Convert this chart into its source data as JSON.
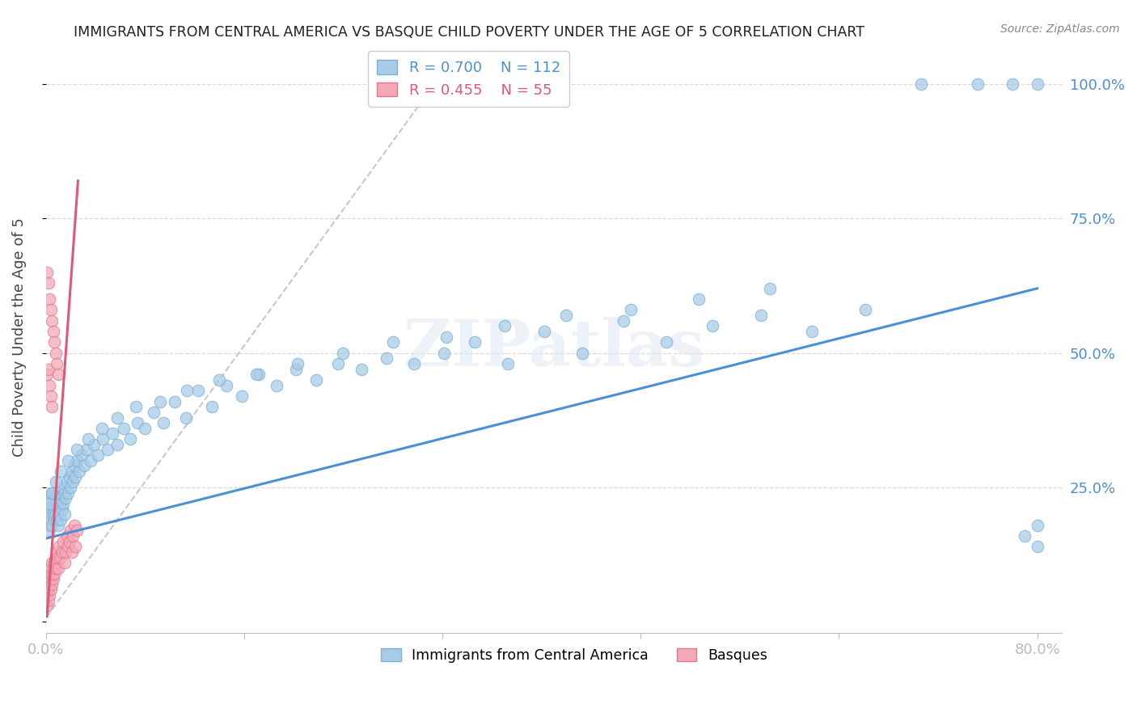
{
  "title": "IMMIGRANTS FROM CENTRAL AMERICA VS BASQUE CHILD POVERTY UNDER THE AGE OF 5 CORRELATION CHART",
  "source": "Source: ZipAtlas.com",
  "ylabel": "Child Poverty Under the Age of 5",
  "watermark": "ZIPatlas",
  "legend_blue_r": "R = 0.700",
  "legend_blue_n": "N = 112",
  "legend_pink_r": "R = 0.455",
  "legend_pink_n": "N = 55",
  "legend_blue_label": "Immigrants from Central America",
  "legend_pink_label": "Basques",
  "blue_color": "#a8cce8",
  "blue_edge_color": "#7ab0d4",
  "pink_color": "#f4a8b8",
  "pink_edge_color": "#e07890",
  "blue_line_color": "#4a90d9",
  "pink_line_color": "#e05878",
  "dash_line_color": "#c8c8c8",
  "grid_color": "#d8d8d8",
  "title_color": "#222222",
  "tick_color": "#4a90d9",
  "ylabel_color": "#444444",
  "xlim": [
    0.0,
    0.82
  ],
  "ylim": [
    -0.02,
    1.08
  ],
  "xticks": [
    0.0,
    0.16,
    0.32,
    0.48,
    0.64,
    0.8
  ],
  "xticklabels": [
    "0.0%",
    "",
    "",
    "",
    "",
    "80.0%"
  ],
  "yticks_right": [
    0.25,
    0.5,
    0.75,
    1.0
  ],
  "yticklabels_right": [
    "25.0%",
    "50.0%",
    "75.0%",
    "100.0%"
  ],
  "blue_trend": [
    0.0,
    0.8,
    0.155,
    0.62
  ],
  "pink_trend": [
    0.001,
    0.026,
    0.01,
    0.82
  ],
  "dash_trend": [
    0.001,
    0.32,
    0.01,
    1.02
  ],
  "blue_x": [
    0.001,
    0.002,
    0.002,
    0.003,
    0.003,
    0.004,
    0.004,
    0.005,
    0.005,
    0.006,
    0.006,
    0.007,
    0.007,
    0.007,
    0.008,
    0.008,
    0.009,
    0.009,
    0.01,
    0.01,
    0.01,
    0.011,
    0.011,
    0.012,
    0.012,
    0.013,
    0.013,
    0.014,
    0.015,
    0.015,
    0.016,
    0.017,
    0.018,
    0.019,
    0.02,
    0.021,
    0.022,
    0.023,
    0.024,
    0.025,
    0.027,
    0.029,
    0.031,
    0.033,
    0.036,
    0.039,
    0.042,
    0.046,
    0.05,
    0.054,
    0.058,
    0.063,
    0.068,
    0.074,
    0.08,
    0.087,
    0.095,
    0.104,
    0.113,
    0.123,
    0.134,
    0.146,
    0.158,
    0.172,
    0.186,
    0.202,
    0.218,
    0.236,
    0.255,
    0.275,
    0.297,
    0.321,
    0.346,
    0.373,
    0.402,
    0.433,
    0.466,
    0.501,
    0.538,
    0.577,
    0.618,
    0.661,
    0.706,
    0.752,
    0.78,
    0.79,
    0.8,
    0.8,
    0.8,
    0.003,
    0.005,
    0.008,
    0.012,
    0.018,
    0.025,
    0.034,
    0.045,
    0.058,
    0.073,
    0.092,
    0.114,
    0.14,
    0.17,
    0.203,
    0.24,
    0.28,
    0.323,
    0.37,
    0.42,
    0.472,
    0.527,
    0.584
  ],
  "blue_y": [
    0.2,
    0.18,
    0.22,
    0.17,
    0.23,
    0.19,
    0.21,
    0.18,
    0.24,
    0.2,
    0.22,
    0.19,
    0.21,
    0.24,
    0.2,
    0.23,
    0.19,
    0.22,
    0.18,
    0.21,
    0.24,
    0.2,
    0.23,
    0.19,
    0.22,
    0.21,
    0.25,
    0.22,
    0.2,
    0.24,
    0.23,
    0.26,
    0.24,
    0.27,
    0.25,
    0.28,
    0.26,
    0.29,
    0.27,
    0.3,
    0.28,
    0.31,
    0.29,
    0.32,
    0.3,
    0.33,
    0.31,
    0.34,
    0.32,
    0.35,
    0.33,
    0.36,
    0.34,
    0.37,
    0.36,
    0.39,
    0.37,
    0.41,
    0.38,
    0.43,
    0.4,
    0.44,
    0.42,
    0.46,
    0.44,
    0.47,
    0.45,
    0.48,
    0.47,
    0.49,
    0.48,
    0.5,
    0.52,
    0.48,
    0.54,
    0.5,
    0.56,
    0.52,
    0.55,
    0.57,
    0.54,
    0.58,
    1.0,
    1.0,
    1.0,
    0.16,
    0.18,
    0.14,
    1.0,
    0.22,
    0.24,
    0.26,
    0.28,
    0.3,
    0.32,
    0.34,
    0.36,
    0.38,
    0.4,
    0.41,
    0.43,
    0.45,
    0.46,
    0.48,
    0.5,
    0.52,
    0.53,
    0.55,
    0.57,
    0.58,
    0.6,
    0.62
  ],
  "pink_x": [
    0.001,
    0.001,
    0.001,
    0.002,
    0.002,
    0.002,
    0.003,
    0.003,
    0.003,
    0.004,
    0.004,
    0.004,
    0.005,
    0.005,
    0.005,
    0.006,
    0.006,
    0.007,
    0.007,
    0.008,
    0.008,
    0.009,
    0.009,
    0.01,
    0.01,
    0.011,
    0.012,
    0.013,
    0.014,
    0.015,
    0.016,
    0.017,
    0.018,
    0.019,
    0.02,
    0.021,
    0.022,
    0.023,
    0.024,
    0.025,
    0.001,
    0.001,
    0.002,
    0.002,
    0.003,
    0.003,
    0.004,
    0.004,
    0.005,
    0.005,
    0.006,
    0.007,
    0.008,
    0.009,
    0.01
  ],
  "pink_y": [
    0.03,
    0.05,
    0.07,
    0.04,
    0.06,
    0.08,
    0.05,
    0.07,
    0.09,
    0.06,
    0.08,
    0.1,
    0.07,
    0.09,
    0.11,
    0.08,
    0.1,
    0.09,
    0.11,
    0.1,
    0.12,
    0.11,
    0.13,
    0.1,
    0.12,
    0.14,
    0.12,
    0.13,
    0.15,
    0.11,
    0.13,
    0.16,
    0.14,
    0.15,
    0.17,
    0.13,
    0.16,
    0.18,
    0.14,
    0.17,
    0.46,
    0.65,
    0.47,
    0.63,
    0.44,
    0.6,
    0.42,
    0.58,
    0.4,
    0.56,
    0.54,
    0.52,
    0.5,
    0.48,
    0.46
  ]
}
